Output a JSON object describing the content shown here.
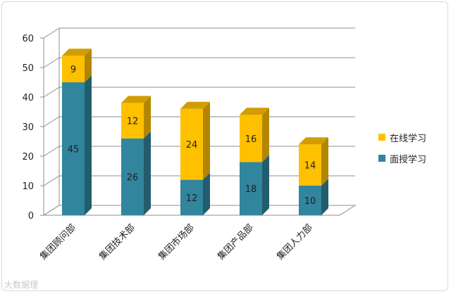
{
  "chart_data": {
    "type": "bar",
    "stacked": true,
    "categories": [
      "集团顾问部",
      "集团技术部",
      "集团市场部",
      "集团产品部",
      "集团人力部"
    ],
    "series": [
      {
        "name": "面授学习",
        "values": [
          45,
          26,
          12,
          18,
          10
        ],
        "color": "#31859C"
      },
      {
        "name": "在线学习",
        "values": [
          9,
          12,
          24,
          16,
          14
        ],
        "color": "#FFC000"
      }
    ],
    "ylim": [
      0,
      60
    ],
    "yticks": [
      0,
      10,
      20,
      30,
      40,
      50,
      60
    ],
    "grid": true,
    "legend_position": "right",
    "title": "",
    "xlabel": "",
    "ylabel": ""
  },
  "watermark": "大数据理"
}
